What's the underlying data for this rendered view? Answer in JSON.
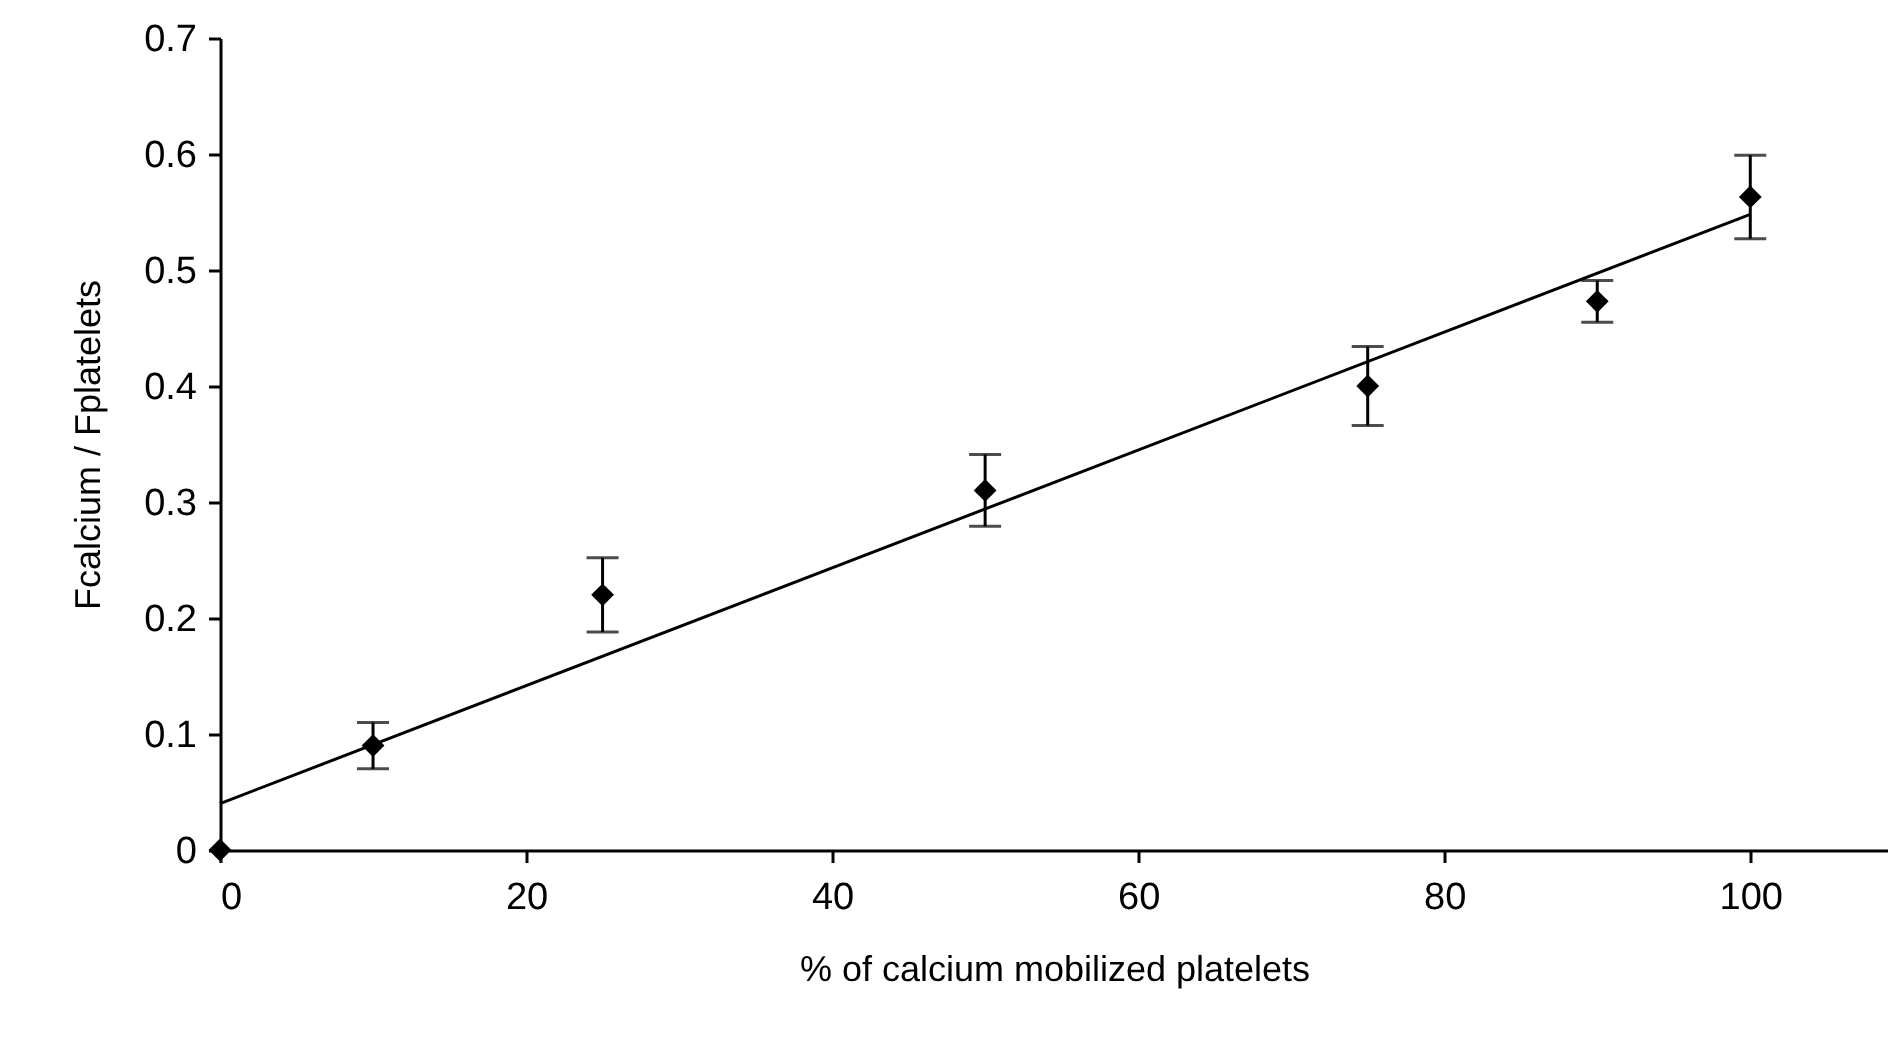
{
  "chart_data": {
    "type": "scatter",
    "xlabel": "% of calcium mobilized platelets",
    "ylabel": "Fcalcium / Fplatelets",
    "x": [
      0,
      10,
      25,
      50,
      75,
      90,
      100
    ],
    "series": [
      {
        "color": "#000000",
        "marker": "diamond",
        "values": [
          0,
          0.09,
          0.22,
          0.31,
          0.4,
          0.473,
          0.563
        ],
        "errors": [
          null,
          0.02,
          0.032,
          0.031,
          0.034,
          0.018,
          0.036
        ]
      },
      {
        "type": "line",
        "color": "#000000",
        "x": [
          0,
          100
        ],
        "values": [
          0.04,
          0.548
        ]
      }
    ],
    "xlim": [
      0,
      109
    ],
    "xticks": [
      0,
      20,
      40,
      60,
      80,
      100
    ],
    "ylim": [
      0,
      0.7
    ],
    "yticks": [
      0,
      0.1,
      0.2,
      0.3,
      0.4,
      0.5,
      0.6,
      0.7
    ],
    "grid": false
  }
}
